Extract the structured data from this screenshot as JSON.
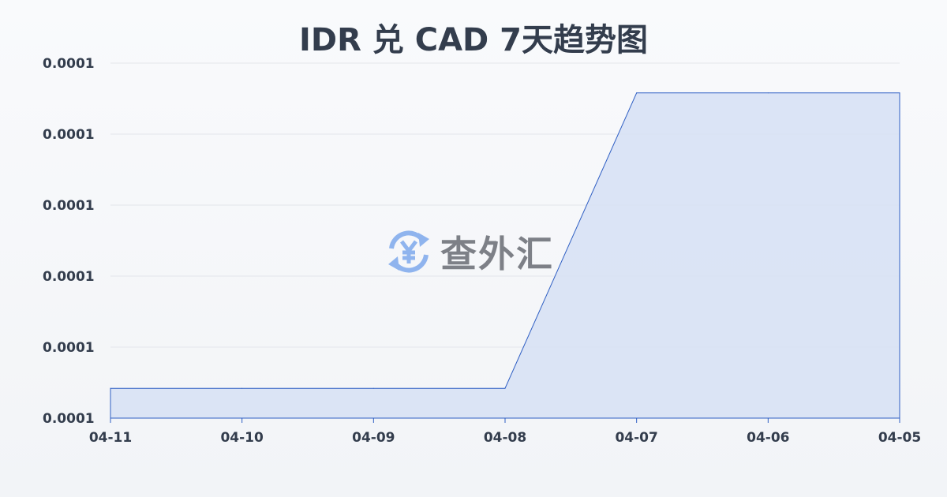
{
  "chart_data": {
    "type": "area",
    "title": "IDR 兑 CAD 7天趋势图",
    "xlabel": "",
    "ylabel": "",
    "categories": [
      "04-11",
      "04-10",
      "04-09",
      "04-08",
      "04-07",
      "04-06",
      "04-05"
    ],
    "series": [
      {
        "values": [
          7.8084e-05,
          7.8084e-05,
          7.8084e-05,
          7.8084e-05,
          7.8916e-05,
          7.8916e-05,
          7.8916e-05
        ]
      }
    ],
    "ylim": [
      7.8e-05,
      7.9e-05
    ],
    "yticks": [
      7.8e-05,
      7.82e-05,
      7.84e-05,
      7.86e-05,
      7.88e-05,
      7.9e-05
    ],
    "ytick_labels": [
      "0.0001",
      "0.0001",
      "0.0001",
      "0.0001",
      "0.0001",
      "0.0001"
    ],
    "grid": true,
    "legend": "none",
    "colors": {
      "line": "#2f5fc4",
      "fill": "#d6e1f5",
      "grid": "#e3e6eb",
      "text": "#333d4d"
    }
  },
  "watermark": {
    "text": "查外汇",
    "icon": "yen-exchange-icon"
  }
}
